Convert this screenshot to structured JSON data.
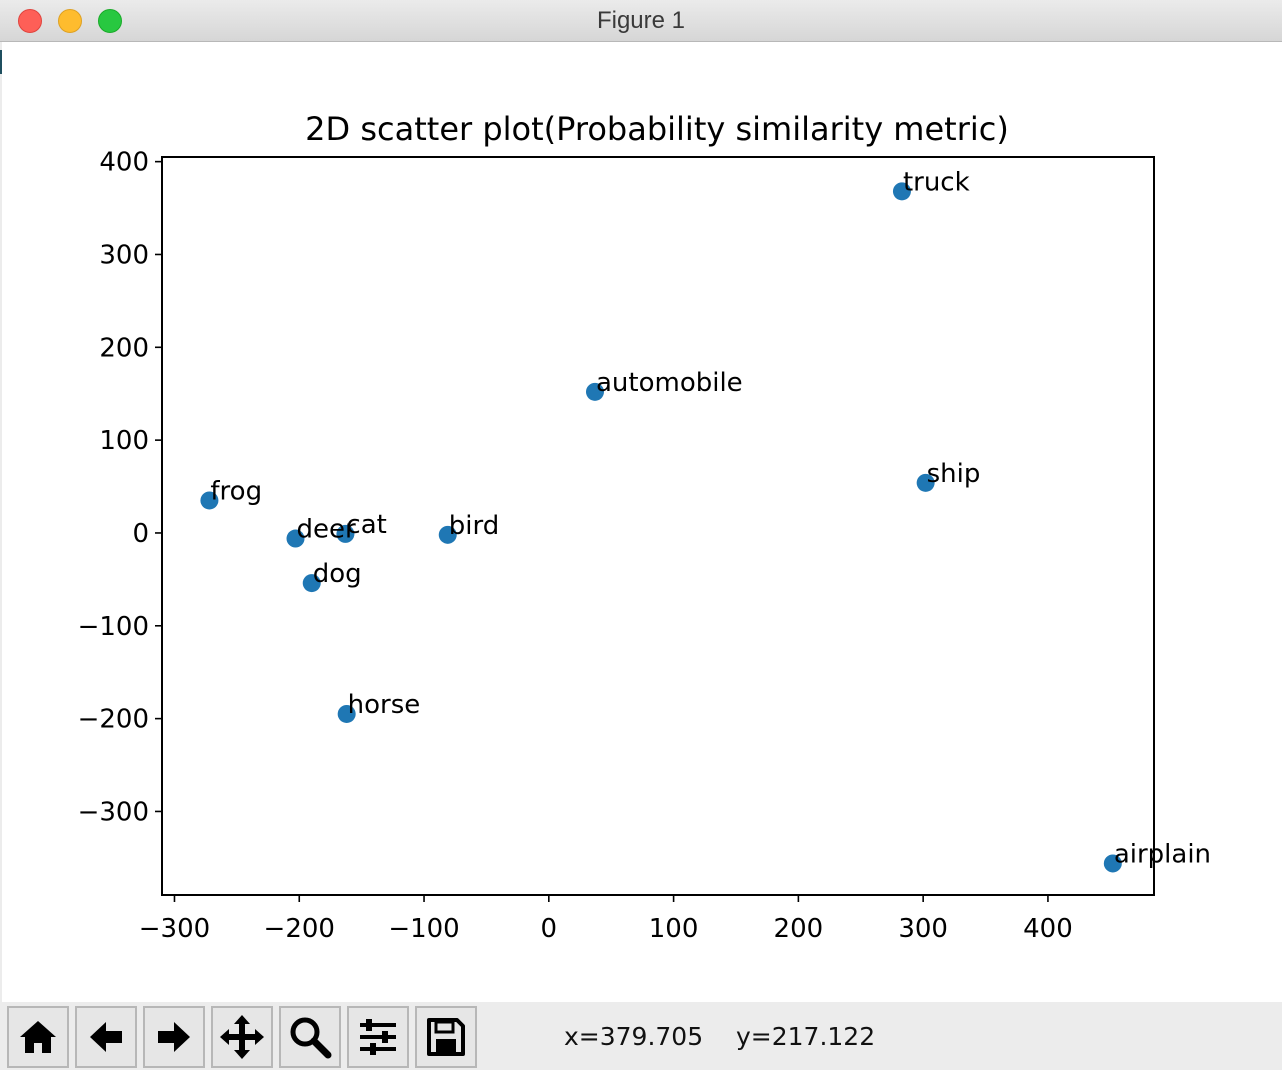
{
  "window": {
    "title": "Figure 1"
  },
  "toolbar": {
    "buttons": [
      {
        "name": "home-button",
        "icon": "home-icon"
      },
      {
        "name": "back-button",
        "icon": "arrow-left-icon"
      },
      {
        "name": "forward-button",
        "icon": "arrow-right-icon"
      },
      {
        "name": "pan-button",
        "icon": "move-icon"
      },
      {
        "name": "zoom-button",
        "icon": "magnifier-icon"
      },
      {
        "name": "configure-subplots-button",
        "icon": "sliders-icon"
      },
      {
        "name": "save-button",
        "icon": "floppy-disk-icon"
      }
    ],
    "coords_x": "x=379.705",
    "coords_y": "y=217.122"
  },
  "chart_data": {
    "type": "scatter",
    "title": "2D scatter plot(Probability similarity metric)",
    "xlabel": "",
    "ylabel": "",
    "xlim": [
      -310,
      485
    ],
    "ylim": [
      -390,
      405
    ],
    "xticks": [
      -300,
      -200,
      -100,
      0,
      100,
      200,
      300,
      400
    ],
    "yticks": [
      -300,
      -200,
      -100,
      0,
      100,
      200,
      300,
      400
    ],
    "grid": false,
    "color": "#1f77b4",
    "points": [
      {
        "label": "truck",
        "x": 283,
        "y": 368
      },
      {
        "label": "automobile",
        "x": 37,
        "y": 152
      },
      {
        "label": "ship",
        "x": 302,
        "y": 54
      },
      {
        "label": "frog",
        "x": -272,
        "y": 35
      },
      {
        "label": "deer",
        "x": -203,
        "y": -6
      },
      {
        "label": "cat",
        "x": -163,
        "y": -1
      },
      {
        "label": "bird",
        "x": -81,
        "y": -2
      },
      {
        "label": "dog",
        "x": -190,
        "y": -54
      },
      {
        "label": "horse",
        "x": -162,
        "y": -195
      },
      {
        "label": "airplain",
        "x": 452,
        "y": -356
      }
    ]
  }
}
